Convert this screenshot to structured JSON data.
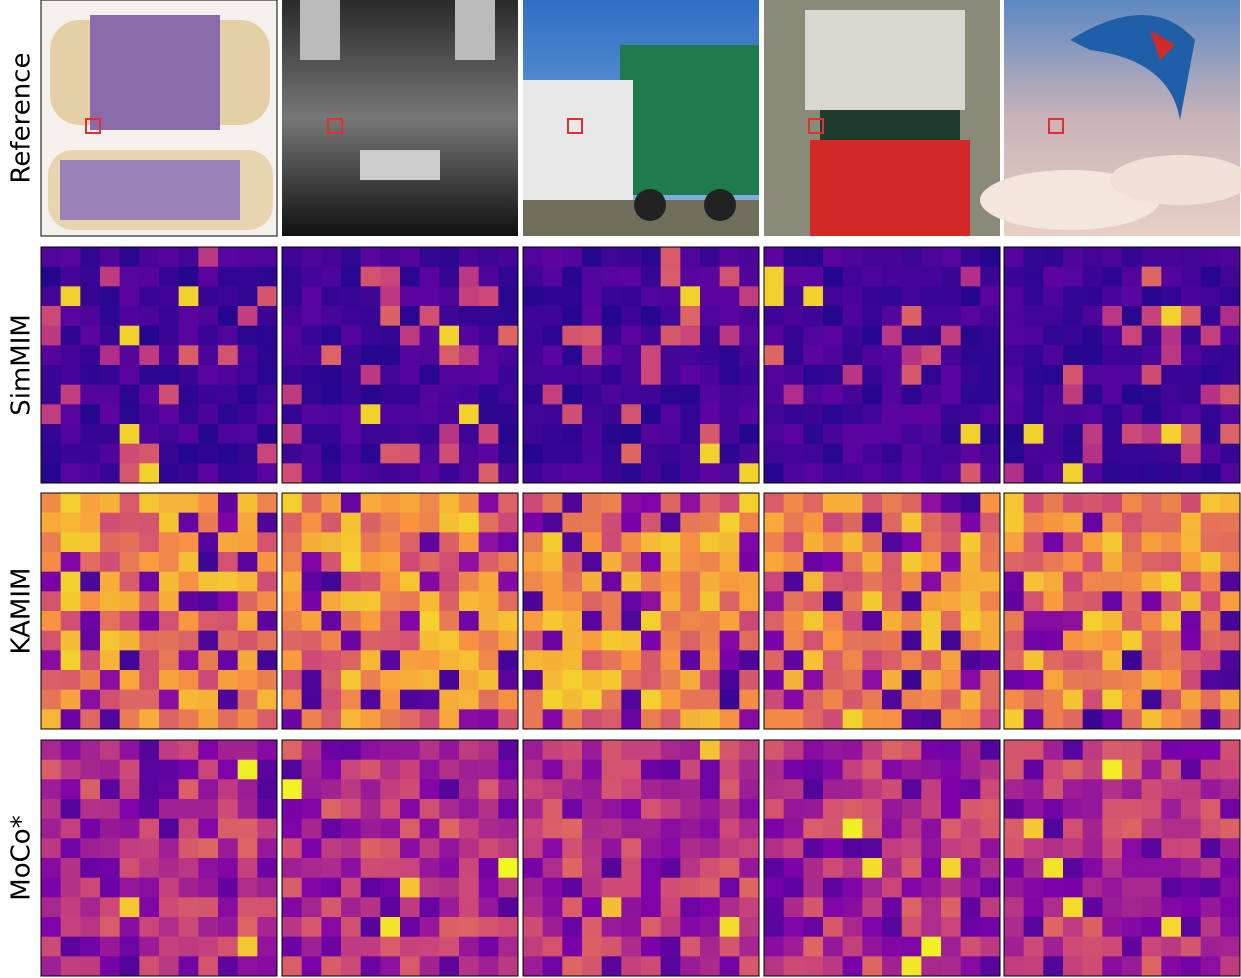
{
  "rows": [
    {
      "label": "Reference"
    },
    {
      "label": "SimMIM"
    },
    {
      "label": "KAMIM"
    },
    {
      "label": "MoCo*"
    }
  ]
}
